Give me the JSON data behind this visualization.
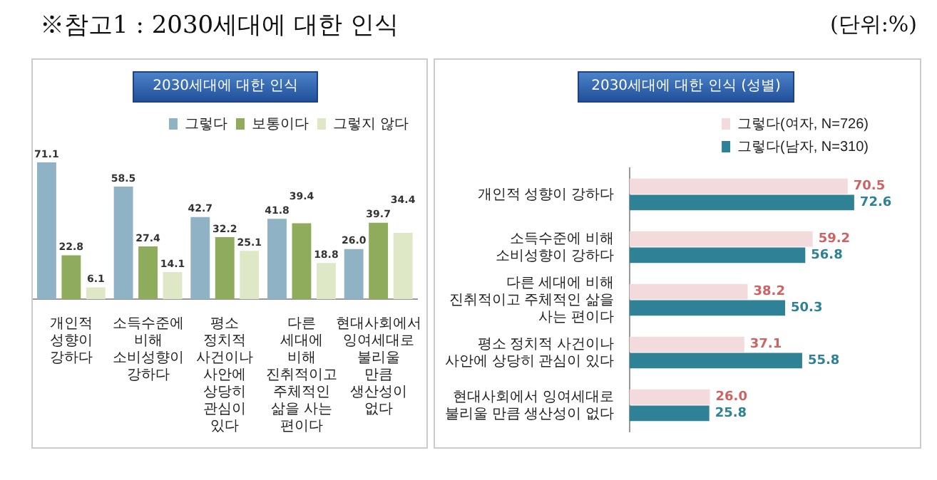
{
  "chart_data": [
    {
      "type": "bar",
      "title": "2030세대에 대한 인식",
      "annotations": [
        "※참고1 : 2030세대에 대한 인식",
        "(단위:%)"
      ],
      "categories": [
        "개인적 성향이 강하다",
        "소득수준에 비해 소비성향이 강하다",
        "평소 정치적 사건이나 사안에 상당히 관심이 있다",
        "다른 세대에 비해 진취적이고 주체적인 삶을 사는 편이다",
        "현대사회에서 잉여세대로 불리울 만큼 생산성이 없다"
      ],
      "series": [
        {
          "name": "그렇다",
          "color": "#8fb3c4",
          "values": [
            71.1,
            58.5,
            42.7,
            41.8,
            26.0
          ],
          "value_labels": [
            "71.1",
            "58.5",
            "42.7",
            "41.8",
            "26.0"
          ]
        },
        {
          "name": "보통이다",
          "color": "#8fac5c",
          "values": [
            22.8,
            27.4,
            32.2,
            39.4,
            39.7
          ],
          "value_labels": [
            "22.8",
            "27.4",
            "32.2",
            "39.4",
            "39.7"
          ]
        },
        {
          "name": "그렇지 않다",
          "color": "#dfe8c6",
          "values": [
            6.1,
            14.1,
            25.1,
            18.8,
            34.4
          ],
          "value_labels": [
            "6.1",
            "14.1",
            "25.1",
            "18.8",
            "34.4"
          ]
        }
      ],
      "legend": "top right",
      "tick_labels": "x"
    },
    {
      "type": "bar",
      "orientation": "horizontal",
      "title": "2030세대에 대한 인식 (성별)",
      "categories": [
        "개인적 성향이 강하다",
        "소득수준에 비해 소비성향이 강하다",
        "다른 세대에 비해 진취적이고 주체적인 삶을 사는 편이다",
        "평소 정치적 사건이나 사안에 상당히 관심이 있다",
        "현대사회에서 잉여세대로 불리울 만큼 생산성이 없다"
      ],
      "series": [
        {
          "name": "그렇다(여자, N=726)",
          "color": "#f3dadd",
          "values": [
            70.5,
            59.2,
            38.2,
            37.1,
            26.0
          ],
          "value_labels": [
            "70.5",
            "59.2",
            "38.2",
            "37.1",
            "26.0"
          ]
        },
        {
          "name": "그렇다(남자, N=310)",
          "color": "#2f8296",
          "values": [
            72.6,
            56.8,
            50.3,
            55.8,
            25.8
          ],
          "value_labels": [
            "72.6",
            "56.8",
            "50.3",
            "55.8",
            "25.8"
          ]
        }
      ],
      "legend": "top right",
      "tick_labels": "y"
    }
  ]
}
